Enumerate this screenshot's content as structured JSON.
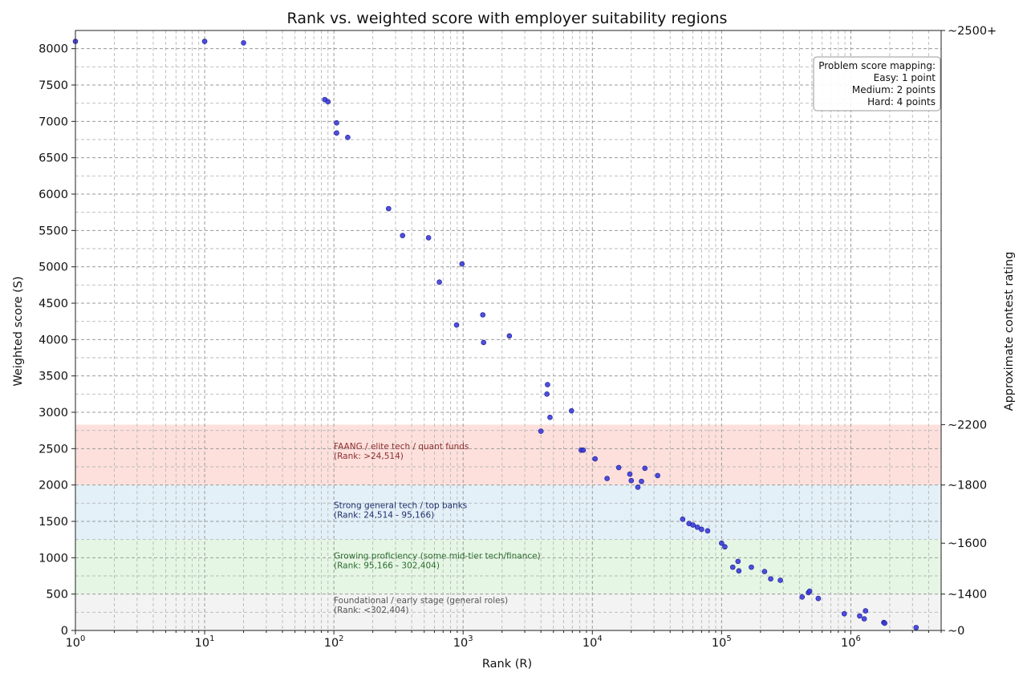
{
  "chart_data": {
    "type": "scatter",
    "title": "Rank vs. weighted score with employer suitability regions",
    "xlabel": "Rank (R)",
    "ylabel": "Weighted score (S)",
    "y2label": "Approximate contest rating",
    "xscale": "log",
    "xlim": [
      1,
      5000000
    ],
    "ylim": [
      0,
      8250
    ],
    "grid": true,
    "x_ticks": [
      {
        "value": 1,
        "base": "10",
        "exp": "0"
      },
      {
        "value": 10,
        "base": "10",
        "exp": "1"
      },
      {
        "value": 100,
        "base": "10",
        "exp": "2"
      },
      {
        "value": 1000,
        "base": "10",
        "exp": "3"
      },
      {
        "value": 10000,
        "base": "10",
        "exp": "4"
      },
      {
        "value": 100000,
        "base": "10",
        "exp": "5"
      },
      {
        "value": 1000000,
        "base": "10",
        "exp": "6"
      }
    ],
    "y_ticks": [
      0,
      500,
      1000,
      1500,
      2000,
      2500,
      3000,
      3500,
      4000,
      4500,
      5000,
      5500,
      6000,
      6500,
      7000,
      7500,
      8000
    ],
    "y2_ticks": [
      {
        "y": 0,
        "label": "~0"
      },
      {
        "y": 500,
        "label": "~1400"
      },
      {
        "y": 1200,
        "label": "~1600"
      },
      {
        "y": 2000,
        "label": "~1800"
      },
      {
        "y": 2830,
        "label": "~2200"
      },
      {
        "y": 8250,
        "label": "~2500+"
      }
    ],
    "regions": [
      {
        "y0": 2000,
        "y1": 2830,
        "color": "#fde0dc",
        "text_color": "#8b2e2e",
        "label": "FAANG / elite tech / quant funds",
        "sublabel": "(Rank: >24,514)",
        "label_y": 2490
      },
      {
        "y0": 1250,
        "y1": 2000,
        "color": "#e3f0f8",
        "text_color": "#1f2f6b",
        "label": "Strong general tech / top banks",
        "sublabel": "(Rank: 24,514 - 95,166)",
        "label_y": 1680
      },
      {
        "y0": 500,
        "y1": 1250,
        "color": "#e5f7e4",
        "text_color": "#2f6b2f",
        "label": "Growing proficiency (some mid-tier tech/finance)",
        "sublabel": "(Rank: 95,166 - 302,404)",
        "label_y": 985
      },
      {
        "y0": 0,
        "y1": 500,
        "color": "#f3f3f3",
        "text_color": "#555555",
        "label": "Foundational / early stage (general roles)",
        "sublabel": "(Rank: <302,404)",
        "label_y": 375
      }
    ],
    "legend": {
      "position": "top-right",
      "lines": [
        "Problem score mapping:",
        "Easy: 1 point",
        "Medium: 2 points",
        "Hard: 4 points"
      ]
    },
    "point_color": "#3b3bdc",
    "points": [
      [
        1,
        8100
      ],
      [
        10,
        8100
      ],
      [
        20,
        8080
      ],
      [
        85,
        7300
      ],
      [
        90,
        7270
      ],
      [
        105,
        6980
      ],
      [
        105,
        6840
      ],
      [
        128,
        6780
      ],
      [
        265,
        5800
      ],
      [
        340,
        5430
      ],
      [
        540,
        5400
      ],
      [
        655,
        4790
      ],
      [
        980,
        5040
      ],
      [
        890,
        4200
      ],
      [
        1420,
        4340
      ],
      [
        1440,
        3960
      ],
      [
        2280,
        4050
      ],
      [
        4500,
        3380
      ],
      [
        4450,
        3250
      ],
      [
        4700,
        2930
      ],
      [
        4000,
        2740
      ],
      [
        6900,
        3020
      ],
      [
        8200,
        2480
      ],
      [
        8500,
        2480
      ],
      [
        10500,
        2360
      ],
      [
        13000,
        2090
      ],
      [
        16000,
        2240
      ],
      [
        19500,
        2150
      ],
      [
        20000,
        2060
      ],
      [
        22500,
        1970
      ],
      [
        24000,
        2050
      ],
      [
        25500,
        2230
      ],
      [
        32000,
        2130
      ],
      [
        50000,
        1530
      ],
      [
        56000,
        1470
      ],
      [
        60000,
        1450
      ],
      [
        65000,
        1420
      ],
      [
        70000,
        1390
      ],
      [
        78000,
        1370
      ],
      [
        100000,
        1200
      ],
      [
        106000,
        1150
      ],
      [
        122000,
        870
      ],
      [
        134000,
        950
      ],
      [
        136000,
        820
      ],
      [
        170000,
        870
      ],
      [
        215000,
        810
      ],
      [
        240000,
        710
      ],
      [
        285000,
        690
      ],
      [
        420000,
        460
      ],
      [
        470000,
        520
      ],
      [
        480000,
        540
      ],
      [
        560000,
        440
      ],
      [
        890000,
        230
      ],
      [
        1170000,
        200
      ],
      [
        1270000,
        160
      ],
      [
        1300000,
        270
      ],
      [
        1800000,
        110
      ],
      [
        1830000,
        100
      ],
      [
        3200000,
        40
      ]
    ]
  }
}
